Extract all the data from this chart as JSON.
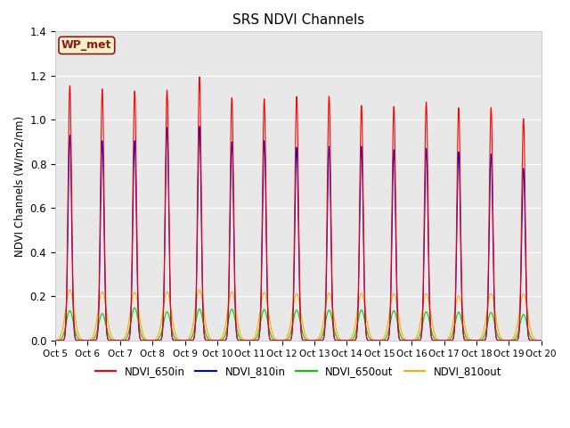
{
  "title": "SRS NDVI Channels",
  "ylabel": "NDVI Channels (W/m2/nm)",
  "xlabel": "",
  "ylim": [
    0,
    1.4
  ],
  "background_color": "#e8e8e8",
  "annotation_text": "WP_met",
  "annotation_bg": "#f5f0c8",
  "annotation_border": "#8b1a1a",
  "legend_entries": [
    "NDVI_650in",
    "NDVI_810in",
    "NDVI_650out",
    "NDVI_810out"
  ],
  "legend_colors": [
    "#ff0000",
    "#0000dd",
    "#00cc00",
    "#ffaa00"
  ],
  "num_days": 15,
  "peak_650in": [
    1.155,
    1.14,
    1.13,
    1.135,
    1.195,
    1.1,
    1.095,
    1.105,
    1.107,
    1.065,
    1.06,
    1.08,
    1.055,
    1.055,
    1.005
  ],
  "peak_810in": [
    0.93,
    0.905,
    0.905,
    0.965,
    0.97,
    0.9,
    0.905,
    0.875,
    0.88,
    0.88,
    0.865,
    0.87,
    0.855,
    0.845,
    0.78
  ],
  "peak_650out": [
    0.135,
    0.122,
    0.148,
    0.13,
    0.143,
    0.142,
    0.14,
    0.138,
    0.138,
    0.138,
    0.135,
    0.13,
    0.128,
    0.127,
    0.118
  ],
  "peak_810out": [
    0.23,
    0.22,
    0.218,
    0.22,
    0.23,
    0.22,
    0.218,
    0.212,
    0.215,
    0.213,
    0.212,
    0.212,
    0.203,
    0.212,
    0.21
  ],
  "xtick_labels": [
    "Oct 5",
    "Oct 6",
    "Oct 7",
    "Oct 8",
    "Oct 9",
    "Oct 10",
    "Oct 11",
    "Oct 12",
    "Oct 13",
    "Oct 14",
    "Oct 15",
    "Oct 16",
    "Oct 17",
    "Oct 18",
    "Oct 19",
    "Oct 20"
  ],
  "grid_color": "#ffffff",
  "yticks": [
    0.0,
    0.2,
    0.4,
    0.6,
    0.8,
    1.0,
    1.2,
    1.4
  ]
}
